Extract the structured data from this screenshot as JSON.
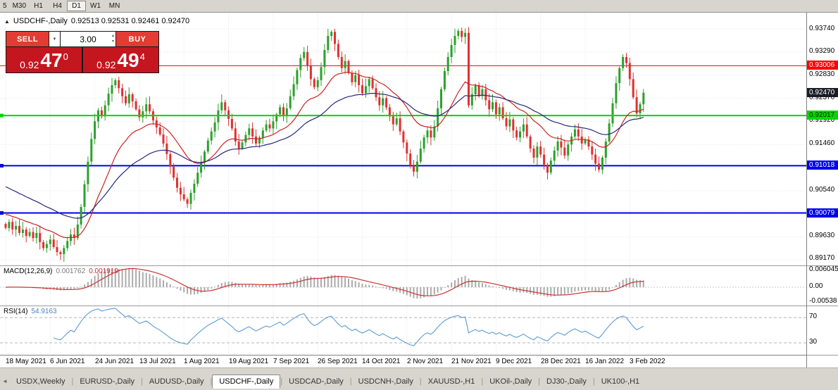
{
  "toolbar": {
    "periods": [
      "5",
      "M30",
      "H1",
      "H4",
      "D1",
      "W1",
      "MN"
    ],
    "active": "D1"
  },
  "chart": {
    "toggle_icon": "▲",
    "title": "USDCHF-,Daily",
    "ohlc": "0.92513 0.92531 0.92461 0.92470",
    "trade_panel": {
      "sell_label": "SELL",
      "buy_label": "BUY",
      "volume": "3.00",
      "caret": "▼",
      "spinner_up": "▴",
      "spinner_down": "▾",
      "sell_price_main": "0.92",
      "sell_price_big": "47",
      "sell_price_sup": "0",
      "buy_price_main": "0.92",
      "buy_price_big": "49",
      "buy_price_sup": "4"
    }
  },
  "chart_data": {
    "type": "candlestick",
    "symbol": "USDCHF",
    "timeframe": "Daily",
    "up_color": "#2ca02c",
    "down_color": "#e03030",
    "price_axis": {
      "max": 0.9374,
      "step": 0.0046,
      "lines": 11,
      "labels": [
        "0.93740",
        "0.93290",
        "0.92830",
        "0.92370",
        "0.91920",
        "0.91460",
        "0.90540",
        "0.89630",
        "0.89170"
      ],
      "label_values": [
        0.9374,
        0.9329,
        0.9283,
        0.9237,
        0.9192,
        0.9146,
        0.9054,
        0.8963,
        0.8917
      ]
    },
    "hlines": [
      {
        "value": 0.93006,
        "label": "0.93006",
        "color": "#ff0000",
        "badge_text": "#ffffff",
        "width": 1
      },
      {
        "value": 0.92017,
        "label": "0.92017",
        "color": "#00d800",
        "badge_text": "#002a00",
        "width": 2
      },
      {
        "value": 0.91018,
        "label": "0.91018",
        "color": "#0000ee",
        "badge_text": "#ffffff",
        "width": 2
      },
      {
        "value": 0.90079,
        "label": "0.90079",
        "color": "#0000ee",
        "badge_text": "#ffffff",
        "width": 2
      }
    ],
    "current_price": {
      "value": 0.9247,
      "label": "0.92470",
      "badge_color": "#1c1c28",
      "badge_text": "#ffffff"
    },
    "moving_averages": [
      {
        "period": 20,
        "color": "#cc2222",
        "seed": 0.9005
      },
      {
        "period": 45,
        "color": "#26267e",
        "seed": 0.906
      }
    ],
    "x_labels": [
      {
        "i": 0,
        "label": "18 May 2021"
      },
      {
        "i": 13,
        "label": "6 Jun 2021"
      },
      {
        "i": 26,
        "label": "24 Jun 2021"
      },
      {
        "i": 39,
        "label": "13 Jul 2021"
      },
      {
        "i": 52,
        "label": "1 Aug 2021"
      },
      {
        "i": 65,
        "label": "19 Aug 2021"
      },
      {
        "i": 78,
        "label": "7 Sep 2021"
      },
      {
        "i": 91,
        "label": "26 Sep 2021"
      },
      {
        "i": 104,
        "label": "14 Oct 2021"
      },
      {
        "i": 117,
        "label": "2 Nov 2021"
      },
      {
        "i": 130,
        "label": "21 Nov 2021"
      },
      {
        "i": 143,
        "label": "9 Dec 2021"
      },
      {
        "i": 156,
        "label": "28 Dec 2021"
      },
      {
        "i": 169,
        "label": "16 Jan 2022"
      },
      {
        "i": 182,
        "label": "3 Feb 2022"
      }
    ],
    "first_open": 0.8986,
    "closes": [
      0.8978,
      0.899,
      0.8975,
      0.8982,
      0.8968,
      0.8975,
      0.8962,
      0.897,
      0.8958,
      0.8968,
      0.895,
      0.8938,
      0.8946,
      0.8955,
      0.894,
      0.893,
      0.8926,
      0.8938,
      0.8952,
      0.8965,
      0.8958,
      0.8985,
      0.902,
      0.9065,
      0.911,
      0.9155,
      0.919,
      0.9212,
      0.92,
      0.9222,
      0.9245,
      0.9262,
      0.9272,
      0.9256,
      0.924,
      0.9226,
      0.9244,
      0.923,
      0.9214,
      0.9198,
      0.921,
      0.9224,
      0.921,
      0.9192,
      0.9178,
      0.9164,
      0.9146,
      0.9125,
      0.91,
      0.9078,
      0.9058,
      0.9045,
      0.9035,
      0.9026,
      0.9048,
      0.9066,
      0.9088,
      0.9108,
      0.913,
      0.9152,
      0.917,
      0.9188,
      0.9212,
      0.9228,
      0.9212,
      0.9195,
      0.9176,
      0.915,
      0.9136,
      0.9148,
      0.9163,
      0.9176,
      0.916,
      0.9146,
      0.9158,
      0.9172,
      0.9184,
      0.9176,
      0.919,
      0.9204,
      0.9218,
      0.92,
      0.9216,
      0.924,
      0.9264,
      0.9292,
      0.9316,
      0.9328,
      0.93,
      0.9274,
      0.9258,
      0.9272,
      0.9298,
      0.9332,
      0.936,
      0.9368,
      0.9344,
      0.9318,
      0.9296,
      0.931,
      0.9286,
      0.9268,
      0.9282,
      0.9262,
      0.9246,
      0.926,
      0.9274,
      0.9256,
      0.9238,
      0.9222,
      0.9236,
      0.9218,
      0.92,
      0.9184,
      0.9196,
      0.917,
      0.9148,
      0.9126,
      0.9102,
      0.909,
      0.911,
      0.9136,
      0.9158,
      0.9172,
      0.9158,
      0.918,
      0.9216,
      0.9254,
      0.929,
      0.9318,
      0.9342,
      0.936,
      0.937,
      0.9358,
      0.9366,
      0.9222,
      0.9244,
      0.9262,
      0.924,
      0.9254,
      0.9232,
      0.9214,
      0.9228,
      0.9204,
      0.9218,
      0.9196,
      0.918,
      0.9194,
      0.9172,
      0.9158,
      0.917,
      0.9184,
      0.916,
      0.9136,
      0.9118,
      0.914,
      0.9124,
      0.9104,
      0.9088,
      0.9112,
      0.9132,
      0.915,
      0.9138,
      0.9122,
      0.9144,
      0.916,
      0.9174,
      0.916,
      0.9146,
      0.9154,
      0.914,
      0.9124,
      0.9106,
      0.9094,
      0.9118,
      0.915,
      0.9186,
      0.9226,
      0.9266,
      0.9296,
      0.9318,
      0.9306,
      0.9274,
      0.9238,
      0.9206,
      0.9224,
      0.9247
    ],
    "indicators": {
      "macd": {
        "label": "MACD(12,26,9)",
        "main_value": "0.001762",
        "signal_value": "0.001919",
        "fast": 12,
        "slow": 26,
        "signal": 9,
        "axis_labels": [
          "0.006045",
          "0.00",
          "-0.00538"
        ],
        "bar_color": "#ababab",
        "line_color": "#cc3333"
      },
      "rsi": {
        "label": "RSI(14)",
        "value": "54.9163",
        "period": 14,
        "levels": [
          70,
          30
        ],
        "axis_labels": [
          "70",
          "30"
        ],
        "line_color": "#5b9bd5"
      }
    }
  },
  "tabs": {
    "scroll_left": "◄",
    "items": [
      "USDX,Weekly",
      "EURUSD-,Daily",
      "AUDUSD-,Daily",
      "USDCHF-,Daily",
      "USDCAD-,Daily",
      "USDCNH-,Daily",
      "XAUUSD-,H1",
      "UKOil-,Daily",
      "DJ30-,Daily",
      "UK100-,H1"
    ],
    "active": "USDCHF-,Daily"
  }
}
